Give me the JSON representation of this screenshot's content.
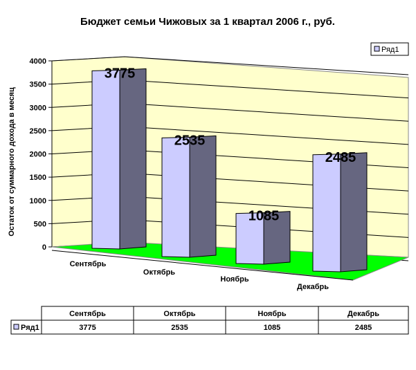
{
  "chart_data": {
    "type": "bar",
    "title": "Бюджет семьи Чижовых за 1 квартал 2006 г., руб.",
    "xlabel": "",
    "ylabel": "Остаток от суммарного дохода в месяц",
    "categories": [
      "Сентябрь",
      "Октябрь",
      "Ноябрь",
      "Декабрь"
    ],
    "series": [
      {
        "name": "Ряд1",
        "values": [
          3775,
          2535,
          1085,
          2485
        ]
      }
    ],
    "ylim": [
      0,
      4000
    ],
    "yticks": [
      0,
      500,
      1000,
      1500,
      2000,
      2500,
      3000,
      3500,
      4000
    ],
    "grid": true,
    "legend": "top-right",
    "data_table": true,
    "colors": {
      "wall": "#ffffcc",
      "floor": "#00ff00",
      "bar_front": "#ccccff",
      "bar_side": "#666680"
    }
  }
}
